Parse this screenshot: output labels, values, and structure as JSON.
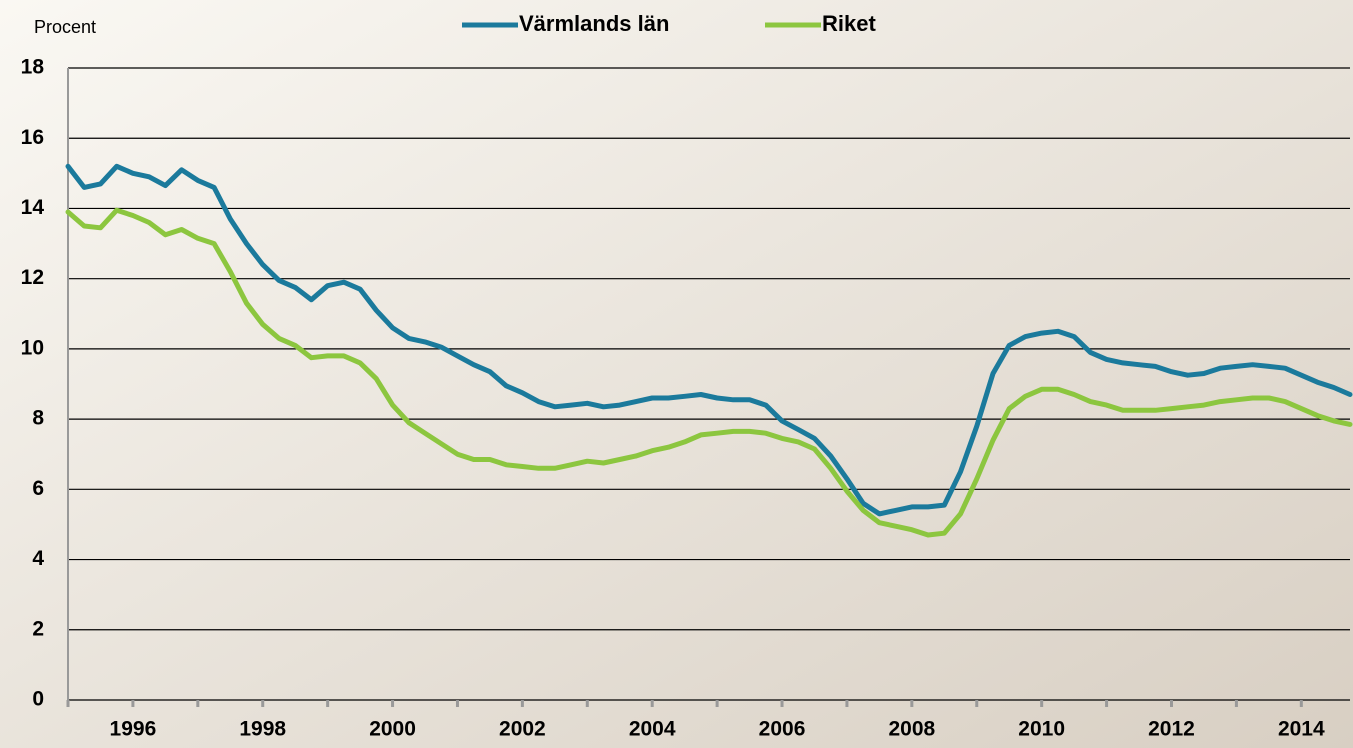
{
  "chart_data": {
    "type": "line",
    "y_axis_label": "Procent",
    "x": [
      1995.0,
      1995.25,
      1995.5,
      1995.75,
      1996.0,
      1996.25,
      1996.5,
      1996.75,
      1997.0,
      1997.25,
      1997.5,
      1997.75,
      1998.0,
      1998.25,
      1998.5,
      1998.75,
      1999.0,
      1999.25,
      1999.5,
      1999.75,
      2000.0,
      2000.25,
      2000.5,
      2000.75,
      2001.0,
      2001.25,
      2001.5,
      2001.75,
      2002.0,
      2002.25,
      2002.5,
      2002.75,
      2003.0,
      2003.25,
      2003.5,
      2003.75,
      2004.0,
      2004.25,
      2004.5,
      2004.75,
      2005.0,
      2005.25,
      2005.5,
      2005.75,
      2006.0,
      2006.25,
      2006.5,
      2006.75,
      2007.0,
      2007.25,
      2007.5,
      2007.75,
      2008.0,
      2008.25,
      2008.5,
      2008.75,
      2009.0,
      2009.25,
      2009.5,
      2009.75,
      2010.0,
      2010.25,
      2010.5,
      2010.75,
      2011.0,
      2011.25,
      2011.5,
      2011.75,
      2012.0,
      2012.25,
      2012.5,
      2012.75,
      2013.0,
      2013.25,
      2013.5,
      2013.75,
      2014.0,
      2014.25,
      2014.5,
      2014.75
    ],
    "series": [
      {
        "name": "Värmlands län",
        "color": "#1b7a9c",
        "values": [
          15.2,
          14.6,
          14.7,
          15.2,
          15.0,
          14.9,
          14.65,
          15.1,
          14.8,
          14.6,
          13.7,
          13.0,
          12.4,
          11.95,
          11.75,
          11.4,
          11.8,
          11.9,
          11.7,
          11.1,
          10.6,
          10.3,
          10.2,
          10.05,
          9.8,
          9.55,
          9.35,
          8.95,
          8.75,
          8.5,
          8.35,
          8.4,
          8.45,
          8.35,
          8.4,
          8.5,
          8.6,
          8.6,
          8.65,
          8.7,
          8.6,
          8.55,
          8.55,
          8.4,
          7.95,
          7.7,
          7.45,
          6.95,
          6.3,
          5.6,
          5.3,
          5.4,
          5.5,
          5.5,
          5.55,
          6.5,
          7.8,
          9.3,
          10.1,
          10.35,
          10.45,
          10.5,
          10.35,
          9.9,
          9.7,
          9.6,
          9.55,
          9.5,
          9.35,
          9.25,
          9.3,
          9.45,
          9.5,
          9.55,
          9.5,
          9.45,
          9.25,
          9.05,
          8.9,
          8.7
        ]
      },
      {
        "name": "Riket",
        "color": "#8cc63f",
        "values": [
          13.9,
          13.5,
          13.45,
          13.95,
          13.8,
          13.6,
          13.25,
          13.4,
          13.15,
          13.0,
          12.2,
          11.3,
          10.7,
          10.3,
          10.1,
          9.75,
          9.8,
          9.8,
          9.6,
          9.15,
          8.4,
          7.9,
          7.6,
          7.3,
          7.0,
          6.85,
          6.85,
          6.7,
          6.65,
          6.6,
          6.6,
          6.7,
          6.8,
          6.75,
          6.85,
          6.95,
          7.1,
          7.2,
          7.35,
          7.55,
          7.6,
          7.65,
          7.65,
          7.6,
          7.45,
          7.35,
          7.15,
          6.6,
          5.95,
          5.4,
          5.05,
          4.95,
          4.85,
          4.7,
          4.75,
          5.3,
          6.3,
          7.4,
          8.3,
          8.65,
          8.85,
          8.85,
          8.7,
          8.5,
          8.4,
          8.25,
          8.25,
          8.25,
          8.3,
          8.35,
          8.4,
          8.5,
          8.55,
          8.6,
          8.6,
          8.5,
          8.3,
          8.1,
          7.95,
          7.85
        ]
      }
    ],
    "xlim": [
      1995,
      2014.75
    ],
    "xticks": [
      1996,
      1998,
      2000,
      2002,
      2004,
      2006,
      2008,
      2010,
      2012,
      2014
    ],
    "xminorticks": [
      1995,
      1997,
      1999,
      2001,
      2003,
      2005,
      2007,
      2009,
      2011,
      2013
    ],
    "ylim": [
      0,
      18
    ],
    "yticks": [
      0,
      2,
      4,
      6,
      8,
      10,
      12,
      14,
      16,
      18
    ],
    "grid": true,
    "legend": "top"
  }
}
